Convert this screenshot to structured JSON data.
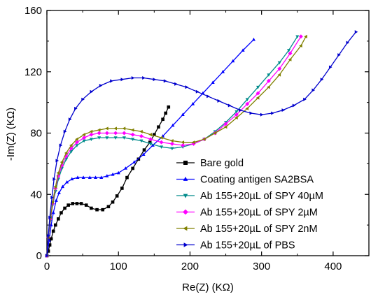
{
  "chart_data": {
    "type": "scatter",
    "xlabel": "Re(Z) (KΩ)",
    "ylabel": "-Im(Z) (KΩ)",
    "xlim": [
      0,
      450
    ],
    "ylim": [
      0,
      160
    ],
    "x_ticks": [
      0,
      100,
      200,
      300,
      400
    ],
    "y_ticks": [
      0,
      40,
      80,
      120,
      160
    ],
    "grid": false,
    "legend_position": "bottom-right",
    "series": [
      {
        "name": "Bare gold",
        "color": "#000000",
        "marker": "square",
        "points": [
          [
            0,
            0
          ],
          [
            2,
            3
          ],
          [
            4,
            7
          ],
          [
            6,
            11
          ],
          [
            9,
            16
          ],
          [
            12,
            20
          ],
          [
            16,
            24
          ],
          [
            20,
            28
          ],
          [
            25,
            31
          ],
          [
            30,
            33
          ],
          [
            36,
            34
          ],
          [
            42,
            34
          ],
          [
            48,
            34
          ],
          [
            55,
            33
          ],
          [
            62,
            31
          ],
          [
            70,
            30
          ],
          [
            78,
            30
          ],
          [
            86,
            32
          ],
          [
            92,
            35
          ],
          [
            98,
            39
          ],
          [
            105,
            44
          ],
          [
            112,
            51
          ],
          [
            120,
            57
          ],
          [
            128,
            63
          ],
          [
            136,
            69
          ],
          [
            144,
            74
          ],
          [
            150,
            79
          ],
          [
            156,
            84
          ],
          [
            162,
            89
          ],
          [
            166,
            93
          ],
          [
            170,
            97
          ]
        ]
      },
      {
        "name": "Coating antigen SA2BSA",
        "color": "#0000ff",
        "marker": "triangle-up",
        "points": [
          [
            0,
            0
          ],
          [
            3,
            10
          ],
          [
            6,
            20
          ],
          [
            9,
            28
          ],
          [
            13,
            36
          ],
          [
            17,
            41
          ],
          [
            22,
            45
          ],
          [
            28,
            48
          ],
          [
            35,
            50
          ],
          [
            43,
            51
          ],
          [
            51,
            51
          ],
          [
            60,
            51
          ],
          [
            68,
            51
          ],
          [
            76,
            51
          ],
          [
            84,
            52
          ],
          [
            92,
            53
          ],
          [
            100,
            54
          ],
          [
            110,
            57
          ],
          [
            122,
            61
          ],
          [
            135,
            66
          ],
          [
            148,
            72
          ],
          [
            162,
            78
          ],
          [
            176,
            85
          ],
          [
            190,
            92
          ],
          [
            204,
            99
          ],
          [
            218,
            106
          ],
          [
            232,
            113
          ],
          [
            246,
            120
          ],
          [
            260,
            127
          ],
          [
            274,
            134
          ],
          [
            289,
            141
          ]
        ]
      },
      {
        "name": "Ab 155+20µL of SPY 40µM",
        "color": "#008b8b",
        "marker": "triangle-down",
        "points": [
          [
            0,
            0
          ],
          [
            2,
            12
          ],
          [
            5,
            23
          ],
          [
            8,
            33
          ],
          [
            12,
            42
          ],
          [
            16,
            50
          ],
          [
            21,
            57
          ],
          [
            27,
            63
          ],
          [
            34,
            68
          ],
          [
            42,
            72
          ],
          [
            52,
            75
          ],
          [
            62,
            76
          ],
          [
            73,
            77
          ],
          [
            84,
            77
          ],
          [
            96,
            77
          ],
          [
            108,
            77
          ],
          [
            120,
            76
          ],
          [
            132,
            75
          ],
          [
            145,
            73
          ],
          [
            160,
            71
          ],
          [
            175,
            70
          ],
          [
            190,
            71
          ],
          [
            205,
            73
          ],
          [
            220,
            76
          ],
          [
            235,
            81
          ],
          [
            250,
            87
          ],
          [
            265,
            94
          ],
          [
            280,
            102
          ],
          [
            295,
            110
          ],
          [
            310,
            118
          ],
          [
            325,
            126
          ],
          [
            338,
            134
          ],
          [
            350,
            143
          ]
        ]
      },
      {
        "name": "Ab 155+20µL of SPY 2µM",
        "color": "#ff00ff",
        "marker": "diamond",
        "points": [
          [
            0,
            0
          ],
          [
            2,
            12
          ],
          [
            5,
            24
          ],
          [
            8,
            34
          ],
          [
            12,
            44
          ],
          [
            16,
            52
          ],
          [
            21,
            59
          ],
          [
            27,
            65
          ],
          [
            34,
            70
          ],
          [
            42,
            74
          ],
          [
            52,
            77
          ],
          [
            62,
            79
          ],
          [
            73,
            80
          ],
          [
            84,
            80
          ],
          [
            96,
            80
          ],
          [
            108,
            80
          ],
          [
            120,
            79
          ],
          [
            132,
            78
          ],
          [
            145,
            76
          ],
          [
            160,
            74
          ],
          [
            175,
            73
          ],
          [
            190,
            72
          ],
          [
            205,
            73
          ],
          [
            220,
            76
          ],
          [
            235,
            80
          ],
          [
            250,
            86
          ],
          [
            265,
            92
          ],
          [
            280,
            99
          ],
          [
            295,
            106
          ],
          [
            310,
            114
          ],
          [
            325,
            122
          ],
          [
            340,
            132
          ],
          [
            355,
            143
          ]
        ]
      },
      {
        "name": "Ab 155+20µL of SPY 2nM",
        "color": "#808000",
        "marker": "triangle-left",
        "points": [
          [
            0,
            0
          ],
          [
            2,
            12
          ],
          [
            5,
            25
          ],
          [
            8,
            35
          ],
          [
            12,
            45
          ],
          [
            16,
            54
          ],
          [
            21,
            61
          ],
          [
            27,
            67
          ],
          [
            34,
            72
          ],
          [
            42,
            76
          ],
          [
            52,
            79
          ],
          [
            62,
            81
          ],
          [
            73,
            82
          ],
          [
            84,
            83
          ],
          [
            96,
            83
          ],
          [
            108,
            83
          ],
          [
            120,
            82
          ],
          [
            132,
            81
          ],
          [
            145,
            79
          ],
          [
            160,
            77
          ],
          [
            175,
            75
          ],
          [
            190,
            74
          ],
          [
            205,
            74
          ],
          [
            220,
            76
          ],
          [
            235,
            80
          ],
          [
            250,
            84
          ],
          [
            265,
            90
          ],
          [
            280,
            96
          ],
          [
            295,
            103
          ],
          [
            310,
            110
          ],
          [
            325,
            118
          ],
          [
            340,
            128
          ],
          [
            355,
            137
          ],
          [
            362,
            143
          ]
        ]
      },
      {
        "name": "Ab 155+20µL of PBS",
        "color": "#0000cd",
        "marker": "triangle-right",
        "points": [
          [
            0,
            0
          ],
          [
            2,
            13
          ],
          [
            4,
            25
          ],
          [
            7,
            38
          ],
          [
            10,
            50
          ],
          [
            14,
            62
          ],
          [
            19,
            72
          ],
          [
            25,
            81
          ],
          [
            32,
            89
          ],
          [
            40,
            96
          ],
          [
            50,
            102
          ],
          [
            62,
            107
          ],
          [
            75,
            111
          ],
          [
            90,
            114
          ],
          [
            105,
            115
          ],
          [
            120,
            116
          ],
          [
            135,
            116
          ],
          [
            150,
            115
          ],
          [
            165,
            114
          ],
          [
            180,
            112
          ],
          [
            195,
            110
          ],
          [
            210,
            107
          ],
          [
            225,
            104
          ],
          [
            240,
            101
          ],
          [
            255,
            98
          ],
          [
            270,
            95
          ],
          [
            285,
            93
          ],
          [
            300,
            92
          ],
          [
            315,
            93
          ],
          [
            330,
            95
          ],
          [
            345,
            98
          ],
          [
            360,
            102
          ],
          [
            372,
            108
          ],
          [
            384,
            115
          ],
          [
            396,
            123
          ],
          [
            408,
            131
          ],
          [
            420,
            139
          ],
          [
            432,
            146
          ]
        ]
      }
    ]
  }
}
